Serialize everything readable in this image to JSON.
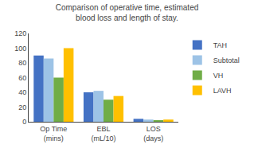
{
  "chart_data": {
    "type": "bar",
    "title": "Comparison of operative time, estimated blood loss and length of stay.",
    "categories": [
      "Op Time\n(mins)",
      "EBL\n(mL/10)",
      "LOS\n(days)"
    ],
    "series": [
      {
        "name": "TAH",
        "color": "#4472C4",
        "values": [
          90,
          40,
          4
        ]
      },
      {
        "name": "Subtotal",
        "color": "#9DC3E6",
        "values": [
          86,
          42,
          3
        ]
      },
      {
        "name": "VH",
        "color": "#70AD47",
        "values": [
          60,
          30,
          2
        ]
      },
      {
        "name": "LAVH",
        "color": "#FFC000",
        "values": [
          100,
          35,
          3
        ]
      }
    ],
    "ylim": [
      0,
      120
    ],
    "yticks": [
      0,
      20,
      40,
      60,
      80,
      100,
      120
    ],
    "grid": false,
    "legend": "upper right"
  }
}
